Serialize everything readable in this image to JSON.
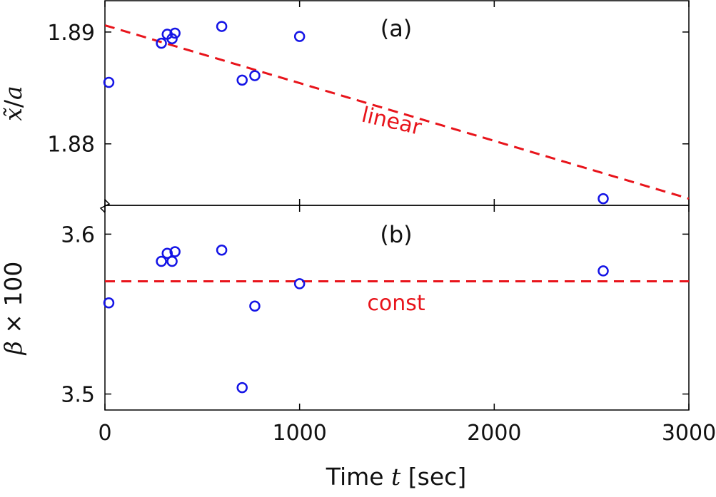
{
  "chart_data": [
    {
      "panel_label": "(a)",
      "type": "scatter",
      "ylabel_parts": [
        "x̃",
        "/",
        "a"
      ],
      "y_ticks": [
        1.88,
        1.89
      ],
      "y_tick_labels": [
        "1.88",
        "1.89"
      ],
      "ylim": [
        1.8745,
        1.8928
      ],
      "xlim": [
        0,
        3000
      ],
      "x": [
        20,
        290,
        320,
        345,
        360,
        600,
        705,
        770,
        1000,
        2560
      ],
      "y": [
        1.8855,
        1.889,
        1.8898,
        1.8894,
        1.8899,
        1.8905,
        1.8857,
        1.8861,
        1.8896,
        1.8751
      ],
      "fit": {
        "label": "linear",
        "x": [
          0,
          3000
        ],
        "y": [
          1.8906,
          1.8751
        ]
      },
      "colors": {
        "points": "#1414e6",
        "fit": "#e8141b"
      }
    },
    {
      "panel_label": "(b)",
      "type": "scatter",
      "ylabel_parts": [
        "β",
        " × 100"
      ],
      "y_ticks": [
        3.5,
        3.6
      ],
      "y_tick_labels": [
        "3.5",
        "3.6"
      ],
      "ylim": [
        3.49,
        3.618
      ],
      "xlim": [
        0,
        3000
      ],
      "x": [
        20,
        290,
        320,
        345,
        360,
        600,
        705,
        770,
        1000,
        2560
      ],
      "y": [
        3.557,
        3.583,
        3.588,
        3.583,
        3.589,
        3.59,
        3.504,
        3.555,
        3.569,
        3.577
      ],
      "fit": {
        "label": "const",
        "x": [
          0,
          3000
        ],
        "y": [
          3.5705,
          3.5705
        ]
      },
      "colors": {
        "points": "#1414e6",
        "fit": "#e8141b"
      }
    }
  ],
  "x_axis": {
    "ticks": [
      0,
      1000,
      2000,
      3000
    ],
    "tick_labels": [
      "0",
      "1000",
      "2000",
      "3000"
    ],
    "label_prefix": "Time ",
    "label_var": "t",
    "label_suffix": " [sec]"
  },
  "axis_break": true
}
